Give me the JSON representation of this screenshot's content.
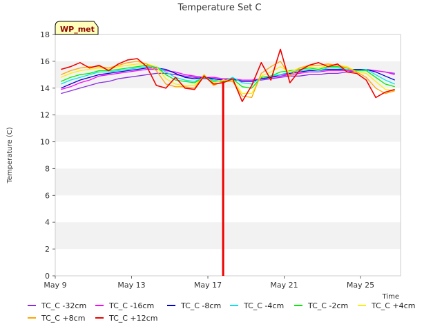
{
  "chart_data": {
    "type": "line",
    "title": "Temperature Set C",
    "xlabel": "Time",
    "ylabel": "Temperature (C)",
    "badge": "WP_met",
    "x_tick_labels": [
      "May 9",
      "May 13",
      "May 17",
      "May 21",
      "May 25"
    ],
    "x_tick_days": [
      9,
      13,
      17,
      21,
      25
    ],
    "xlim": [
      9,
      27.1
    ],
    "ylim": [
      0,
      18
    ],
    "y_ticks": [
      0,
      2,
      4,
      6,
      8,
      10,
      12,
      14,
      16,
      18
    ],
    "grid": "horizontal alternating bands",
    "legend_position": "bottom",
    "x": [
      9.3,
      9.8,
      10.3,
      10.8,
      11.3,
      11.8,
      12.3,
      12.8,
      13.3,
      13.8,
      14.3,
      14.8,
      15.3,
      15.8,
      16.3,
      16.8,
      17.3,
      17.8,
      18.3,
      18.8,
      19.3,
      19.8,
      20.3,
      20.8,
      21.3,
      21.8,
      22.3,
      22.8,
      23.3,
      23.8,
      24.3,
      24.8,
      25.3,
      25.8,
      26.3,
      26.8
    ],
    "series": [
      {
        "name": "TC_C -32cm",
        "color": "#8a2be2",
        "values": [
          13.6,
          13.8,
          14.0,
          14.2,
          14.4,
          14.5,
          14.7,
          14.8,
          14.9,
          15.0,
          15.1,
          15.1,
          15.0,
          14.9,
          14.8,
          14.7,
          14.7,
          14.6,
          14.6,
          14.6,
          14.6,
          14.6,
          14.7,
          14.8,
          14.9,
          14.9,
          15.0,
          15.0,
          15.1,
          15.1,
          15.2,
          15.3,
          15.3,
          15.3,
          15.2,
          15.1
        ]
      },
      {
        "name": "TC_C -16cm",
        "color": "#ff00ff",
        "values": [
          13.9,
          14.1,
          14.4,
          14.6,
          14.9,
          15.0,
          15.1,
          15.2,
          15.3,
          15.4,
          15.4,
          15.3,
          15.2,
          15.0,
          14.9,
          14.8,
          14.8,
          14.7,
          14.7,
          14.6,
          14.6,
          14.7,
          14.8,
          14.9,
          15.0,
          15.1,
          15.2,
          15.2,
          15.3,
          15.3,
          15.3,
          15.3,
          15.4,
          15.3,
          15.2,
          15.0
        ]
      },
      {
        "name": "TC_C -8cm",
        "color": "#0000cd",
        "values": [
          14.0,
          14.3,
          14.6,
          14.8,
          15.0,
          15.1,
          15.2,
          15.3,
          15.4,
          15.5,
          15.5,
          15.4,
          15.1,
          14.8,
          14.7,
          14.8,
          14.7,
          14.6,
          14.7,
          14.5,
          14.5,
          14.7,
          14.8,
          15.0,
          15.1,
          15.2,
          15.3,
          15.3,
          15.4,
          15.4,
          15.4,
          15.4,
          15.4,
          15.2,
          14.9,
          14.6
        ]
      },
      {
        "name": "TC_C -4cm",
        "color": "#00e5ee",
        "values": [
          14.3,
          14.6,
          14.8,
          15.0,
          15.2,
          15.2,
          15.3,
          15.4,
          15.5,
          15.6,
          15.6,
          15.2,
          14.8,
          14.6,
          14.5,
          14.8,
          14.6,
          14.5,
          14.8,
          14.4,
          14.3,
          14.8,
          14.9,
          15.0,
          15.2,
          15.3,
          15.4,
          15.3,
          15.5,
          15.5,
          15.4,
          15.3,
          15.4,
          15.0,
          14.6,
          14.3
        ]
      },
      {
        "name": "TC_C -2cm",
        "color": "#00ee00",
        "values": [
          14.5,
          14.8,
          15.0,
          15.1,
          15.3,
          15.3,
          15.4,
          15.5,
          15.6,
          15.7,
          15.6,
          15.0,
          14.6,
          14.5,
          14.4,
          14.8,
          14.5,
          14.5,
          14.7,
          14.1,
          14.0,
          14.8,
          14.9,
          15.2,
          15.3,
          15.4,
          15.5,
          15.4,
          15.6,
          15.6,
          15.5,
          15.3,
          15.3,
          14.8,
          14.3,
          14.1
        ]
      },
      {
        "name": "TC_C +4cm",
        "color": "#ffee00",
        "values": [
          14.8,
          15.1,
          15.3,
          15.4,
          15.5,
          15.4,
          15.6,
          15.7,
          15.8,
          15.8,
          15.6,
          14.7,
          14.3,
          14.2,
          14.2,
          14.9,
          14.4,
          14.6,
          14.6,
          13.6,
          13.6,
          14.9,
          15.2,
          15.6,
          15.2,
          15.5,
          15.6,
          15.5,
          15.7,
          15.7,
          15.6,
          15.2,
          15.1,
          14.5,
          13.9,
          13.8
        ]
      },
      {
        "name": "TC_C +8cm",
        "color": "#ffa500",
        "values": [
          15.0,
          15.3,
          15.5,
          15.6,
          15.6,
          15.5,
          15.7,
          15.9,
          16.0,
          15.8,
          15.3,
          14.3,
          14.1,
          14.1,
          14.0,
          15.0,
          14.2,
          14.5,
          14.5,
          13.4,
          13.3,
          15.1,
          15.6,
          16.0,
          14.9,
          15.5,
          15.7,
          15.7,
          15.8,
          15.7,
          15.5,
          15.2,
          14.8,
          14.0,
          13.6,
          13.8
        ]
      },
      {
        "name": "TC_C +12cm",
        "color": "#ee0000",
        "values": [
          15.4,
          15.6,
          15.9,
          15.5,
          15.7,
          15.3,
          15.8,
          16.1,
          16.2,
          15.6,
          14.2,
          14.0,
          14.8,
          14.0,
          13.9,
          14.9,
          14.3,
          14.4,
          14.7,
          13.0,
          14.2,
          15.9,
          14.6,
          16.9,
          14.4,
          15.3,
          15.7,
          15.9,
          15.6,
          15.8,
          15.2,
          15.1,
          14.6,
          13.3,
          13.7,
          13.9
        ]
      }
    ],
    "drop_event": {
      "series": "TC_C +12cm",
      "day": 17.8,
      "to_value": 0
    }
  }
}
